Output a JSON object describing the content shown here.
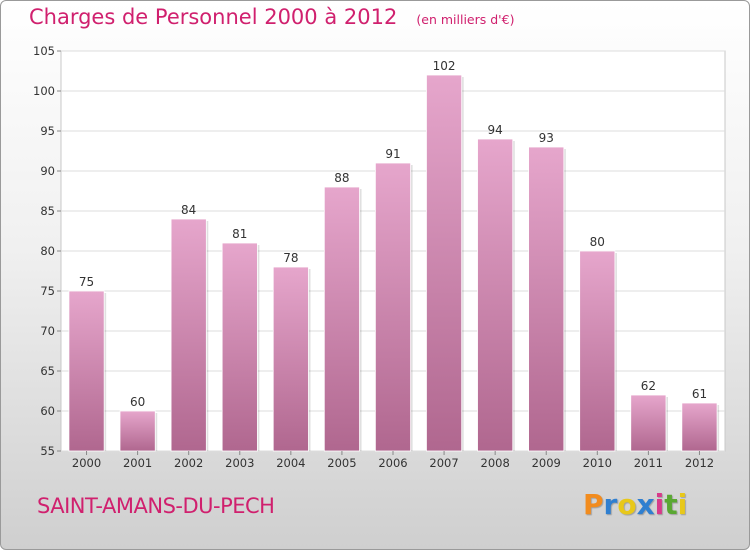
{
  "header": {
    "title": "Charges de Personnel 2000 à 2012",
    "subtitle": "(en milliers d'€)"
  },
  "footer": {
    "commune": "SAINT-AMANS-DU-PECH",
    "brand": "Proxiti",
    "brand_colors": [
      "#f28c1e",
      "#2f7fd0",
      "#e8c81a",
      "#2f7fd0",
      "#d83a8a",
      "#5aa832",
      "#e8c81a"
    ]
  },
  "colors": {
    "bar_top": "#e6a6cc",
    "bar_bottom": "#b0678f",
    "accent": "#d0206e"
  },
  "chart_data": {
    "type": "bar",
    "categories": [
      "2000",
      "2001",
      "2002",
      "2003",
      "2004",
      "2005",
      "2006",
      "2007",
      "2008",
      "2009",
      "2010",
      "2011",
      "2012"
    ],
    "values": [
      75,
      60,
      84,
      81,
      78,
      88,
      91,
      102,
      94,
      93,
      80,
      62,
      61
    ],
    "ylim": [
      55,
      105
    ],
    "yticks": [
      55,
      60,
      65,
      70,
      75,
      80,
      85,
      90,
      95,
      100,
      105
    ],
    "grid": true,
    "data_labels": true
  }
}
